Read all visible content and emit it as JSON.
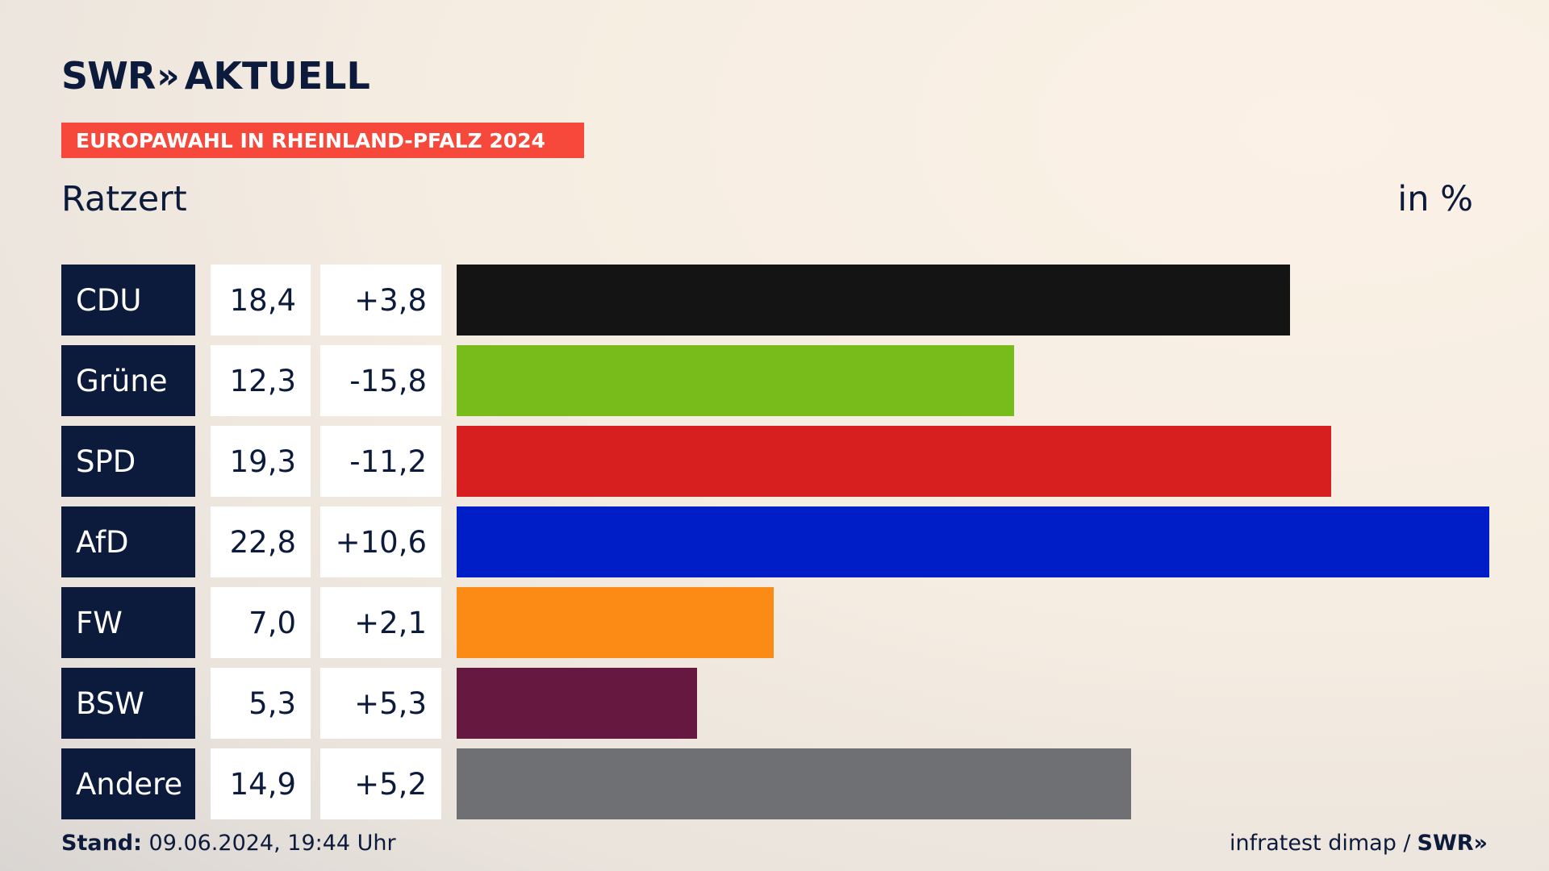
{
  "brand": {
    "logo_text": "SWR",
    "logo_arrows": "»",
    "section": "AKTUELL"
  },
  "banner": {
    "text": "EUROPAWAHL IN RHEINLAND-PFALZ 2024"
  },
  "header": {
    "place": "Ratzert",
    "unit": "in %"
  },
  "chart_data": {
    "type": "bar",
    "orientation": "horizontal",
    "title": "EUROPAWAHL IN RHEINLAND-PFALZ 2024",
    "subtitle": "Ratzert",
    "unit": "in %",
    "categories": [
      "CDU",
      "Grüne",
      "SPD",
      "AfD",
      "FW",
      "BSW",
      "Andere"
    ],
    "values": [
      18.4,
      12.3,
      19.3,
      22.8,
      7.0,
      5.3,
      14.9
    ],
    "value_labels": [
      "18,4",
      "12,3",
      "19,3",
      "22,8",
      "7,0",
      "5,3",
      "14,9"
    ],
    "change_labels": [
      "+3,8",
      "-15,8",
      "-11,2",
      "+10,6",
      "+2,1",
      "+5,3",
      "+5,2"
    ],
    "colors": [
      "#141414",
      "#78bc1c",
      "#d81f1f",
      "#001ec8",
      "#fb8b15",
      "#661840",
      "#6f7073"
    ],
    "xlim": [
      0,
      22.8
    ]
  },
  "footer": {
    "stand_label": "Stand:",
    "stand_value": "09.06.2024, 19:44 Uhr",
    "source": "infratest dimap /",
    "source_brand": "SWR»"
  }
}
